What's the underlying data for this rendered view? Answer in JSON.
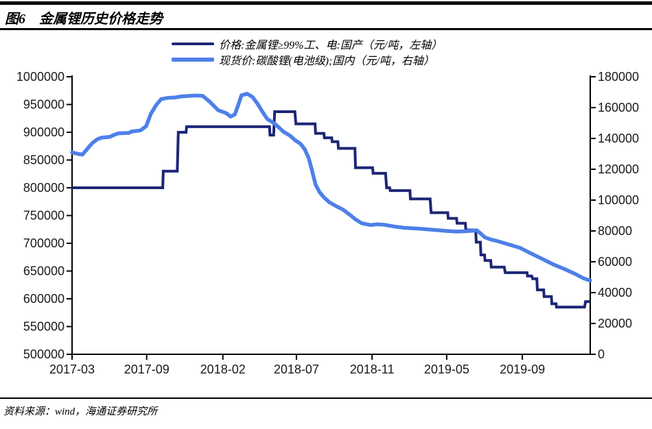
{
  "page": {
    "title": "图6　金属锂历史价格走势",
    "source": "资料来源：wind，海通证券研究所"
  },
  "chart_data": {
    "type": "line",
    "title": "金属锂历史价格走势",
    "grid": false,
    "legend_position": "top-center",
    "legend": [
      {
        "label": "价格:金属锂≥99%工、电:国产（元/吨，左轴）",
        "color": "#1d2676",
        "axis": "left"
      },
      {
        "label": "现货价:碳酸锂(电池级);国内（元/吨，右轴）",
        "color": "#4e80e8",
        "axis": "right"
      }
    ],
    "x_axis": {
      "tick_labels": [
        "2017-03",
        "2017-09",
        "2018-02",
        "2018-07",
        "2018-11",
        "2019-05",
        "2019-09"
      ],
      "tick_positions_pct": [
        0,
        14.4,
        29.1,
        43.3,
        57.9,
        72.3,
        86.9
      ]
    },
    "left_axis": {
      "min": 500000,
      "max": 1000000,
      "tick_step": 50000,
      "ticks": [
        1000000,
        950000,
        900000,
        850000,
        800000,
        750000,
        700000,
        650000,
        600000,
        550000,
        500000
      ]
    },
    "right_axis": {
      "min": 0,
      "max": 180000,
      "tick_step": 20000,
      "ticks": [
        180000,
        160000,
        140000,
        120000,
        100000,
        80000,
        60000,
        40000,
        20000,
        0
      ]
    },
    "series": [
      {
        "name": "价格:金属锂≥99%工、电:国产",
        "axis": "left",
        "color": "#1d2676",
        "stroke_width": 4,
        "points": [
          [
            0,
            800000
          ],
          [
            17.5,
            800000
          ],
          [
            17.6,
            830000
          ],
          [
            20.3,
            830000
          ],
          [
            20.5,
            900000
          ],
          [
            22.0,
            900000
          ],
          [
            22.1,
            910000
          ],
          [
            37.1,
            910000
          ],
          [
            38.1,
            910000
          ],
          [
            38.2,
            895000
          ],
          [
            38.9,
            895000
          ],
          [
            39.1,
            937000
          ],
          [
            43.0,
            937000
          ],
          [
            43.2,
            915000
          ],
          [
            46.9,
            915000
          ],
          [
            47.0,
            898000
          ],
          [
            48.6,
            898000
          ],
          [
            48.7,
            890000
          ],
          [
            50.1,
            890000
          ],
          [
            50.2,
            883000
          ],
          [
            51.3,
            883000
          ],
          [
            51.4,
            871000
          ],
          [
            54.6,
            871000
          ],
          [
            54.7,
            836000
          ],
          [
            58.0,
            836000
          ],
          [
            58.1,
            826000
          ],
          [
            60.5,
            826000
          ],
          [
            60.7,
            800000
          ],
          [
            61.3,
            800000
          ],
          [
            61.4,
            795000
          ],
          [
            65.2,
            795000
          ],
          [
            65.3,
            780000
          ],
          [
            69.1,
            780000
          ],
          [
            69.3,
            755000
          ],
          [
            72.5,
            755000
          ],
          [
            72.6,
            745000
          ],
          [
            74.2,
            745000
          ],
          [
            74.3,
            736000
          ],
          [
            75.9,
            736000
          ],
          [
            76.0,
            724000
          ],
          [
            77.9,
            724000
          ],
          [
            78.0,
            702000
          ],
          [
            78.8,
            702000
          ],
          [
            78.9,
            679000
          ],
          [
            79.6,
            679000
          ],
          [
            79.7,
            669000
          ],
          [
            80.8,
            669000
          ],
          [
            80.9,
            657000
          ],
          [
            83.4,
            657000
          ],
          [
            83.6,
            647000
          ],
          [
            87.8,
            647000
          ],
          [
            87.9,
            641000
          ],
          [
            88.7,
            641000
          ],
          [
            88.9,
            636000
          ],
          [
            89.7,
            636000
          ],
          [
            89.8,
            616000
          ],
          [
            91.0,
            616000
          ],
          [
            91.1,
            604000
          ],
          [
            92.5,
            604000
          ],
          [
            92.6,
            591000
          ],
          [
            93.4,
            591000
          ],
          [
            93.5,
            585000
          ],
          [
            98.9,
            585000
          ],
          [
            99.1,
            595000
          ],
          [
            100,
            595000
          ]
        ]
      },
      {
        "name": "现货价:碳酸锂(电池级);国内",
        "axis": "right",
        "color": "#4e80e8",
        "stroke_width": 5.5,
        "points": [
          [
            0,
            131000
          ],
          [
            1.1,
            130000
          ],
          [
            2.0,
            129500
          ],
          [
            3.0,
            133500
          ],
          [
            4.0,
            137300
          ],
          [
            4.9,
            139500
          ],
          [
            5.7,
            140500
          ],
          [
            7.3,
            141000
          ],
          [
            7.9,
            142000
          ],
          [
            8.9,
            143300
          ],
          [
            11.0,
            143600
          ],
          [
            11.5,
            144500
          ],
          [
            13.2,
            145200
          ],
          [
            14.3,
            148000
          ],
          [
            15.2,
            156000
          ],
          [
            16.3,
            162000
          ],
          [
            17.2,
            165500
          ],
          [
            18.5,
            166300
          ],
          [
            19.9,
            166600
          ],
          [
            21.2,
            167300
          ],
          [
            23.8,
            167800
          ],
          [
            25.2,
            167600
          ],
          [
            26.5,
            164000
          ],
          [
            27.4,
            161000
          ],
          [
            28.2,
            158300
          ],
          [
            29.8,
            156300
          ],
          [
            30.6,
            154200
          ],
          [
            31.4,
            155500
          ],
          [
            32.1,
            162000
          ],
          [
            32.7,
            168000
          ],
          [
            33.8,
            169000
          ],
          [
            34.8,
            167000
          ],
          [
            35.8,
            162500
          ],
          [
            36.7,
            157500
          ],
          [
            37.7,
            152500
          ],
          [
            38.7,
            150500
          ],
          [
            39.5,
            148400
          ],
          [
            40.8,
            144400
          ],
          [
            42.1,
            141700
          ],
          [
            43.0,
            139000
          ],
          [
            44.1,
            136500
          ],
          [
            44.9,
            133000
          ],
          [
            45.7,
            127000
          ],
          [
            46.4,
            118000
          ],
          [
            47.0,
            110000
          ],
          [
            47.8,
            105000
          ],
          [
            48.6,
            101800
          ],
          [
            49.7,
            98500
          ],
          [
            51.0,
            96000
          ],
          [
            52.3,
            93800
          ],
          [
            53.6,
            90500
          ],
          [
            54.7,
            87500
          ],
          [
            55.9,
            85000
          ],
          [
            57.6,
            83800
          ],
          [
            58.9,
            84300
          ],
          [
            60.3,
            84000
          ],
          [
            62.3,
            82800
          ],
          [
            64.2,
            82000
          ],
          [
            66.9,
            81500
          ],
          [
            69.5,
            80800
          ],
          [
            72.2,
            80000
          ],
          [
            74.2,
            79600
          ],
          [
            76.2,
            79800
          ],
          [
            78.1,
            80400
          ],
          [
            78.8,
            78500
          ],
          [
            79.7,
            75800
          ],
          [
            80.8,
            74500
          ],
          [
            81.9,
            73600
          ],
          [
            84.1,
            71400
          ],
          [
            86.4,
            69100
          ],
          [
            88.5,
            65500
          ],
          [
            90.7,
            61900
          ],
          [
            93.0,
            58100
          ],
          [
            95.1,
            55200
          ],
          [
            97.4,
            51600
          ],
          [
            98.7,
            49300
          ],
          [
            99.5,
            48300
          ],
          [
            100,
            48000
          ]
        ]
      }
    ]
  }
}
